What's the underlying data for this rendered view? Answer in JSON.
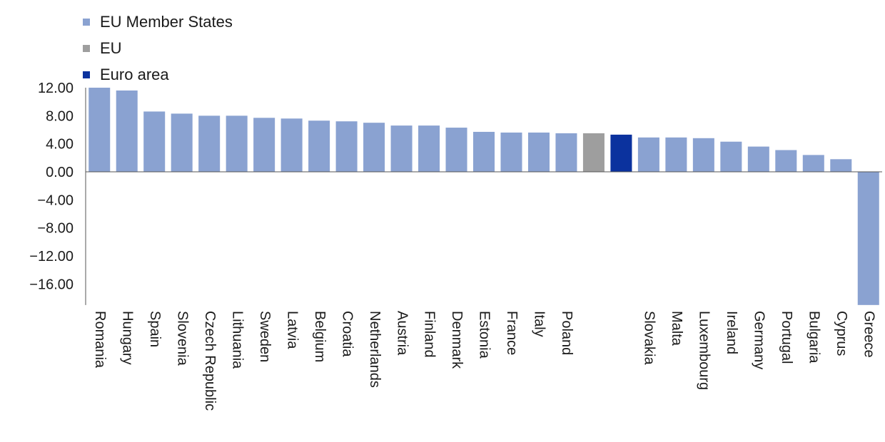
{
  "legend": [
    {
      "label": "EU Member States",
      "color": "#8aa2d1"
    },
    {
      "label": "EU",
      "color": "#9e9e9e"
    },
    {
      "label": "Euro area",
      "color": "#0b329e"
    }
  ],
  "chart_data": {
    "type": "bar",
    "ylim": [
      -19,
      12
    ],
    "yticks": [
      12,
      8,
      4,
      0,
      -4,
      -8,
      -12,
      -16
    ],
    "ytick_labels": [
      "12.00",
      "8.00",
      "4.00",
      "0.00",
      "−4.00",
      "−8.00",
      "−12.00",
      "−16.00"
    ],
    "grid": false,
    "legend_position": "top-left",
    "categories": [
      "Romania",
      "Hungary",
      "Spain",
      "Slovenia",
      "Czech Republic",
      "Lithuania",
      "Sweden",
      "Latvia",
      "Belgium",
      "Croatia",
      "Netherlands",
      "Austria",
      "Finland",
      "Denmark",
      "Estonia",
      "France",
      "Italy",
      "Poland",
      "",
      "",
      "Slovakia",
      "Malta",
      "Luxembourg",
      "Ireland",
      "Germany",
      "Portugal",
      "Bulgaria",
      "Cyprus",
      "Greece"
    ],
    "values": [
      12.0,
      11.6,
      8.6,
      8.3,
      8.0,
      8.0,
      7.7,
      7.6,
      7.3,
      7.2,
      7.0,
      6.6,
      6.6,
      6.3,
      5.7,
      5.6,
      5.6,
      5.5,
      5.5,
      5.3,
      4.9,
      4.9,
      4.8,
      4.3,
      3.6,
      3.1,
      2.4,
      1.8,
      -19.0
    ],
    "groups": [
      "member",
      "member",
      "member",
      "member",
      "member",
      "member",
      "member",
      "member",
      "member",
      "member",
      "member",
      "member",
      "member",
      "member",
      "member",
      "member",
      "member",
      "member",
      "eu",
      "euro",
      "member",
      "member",
      "member",
      "member",
      "member",
      "member",
      "member",
      "member",
      "member"
    ]
  }
}
